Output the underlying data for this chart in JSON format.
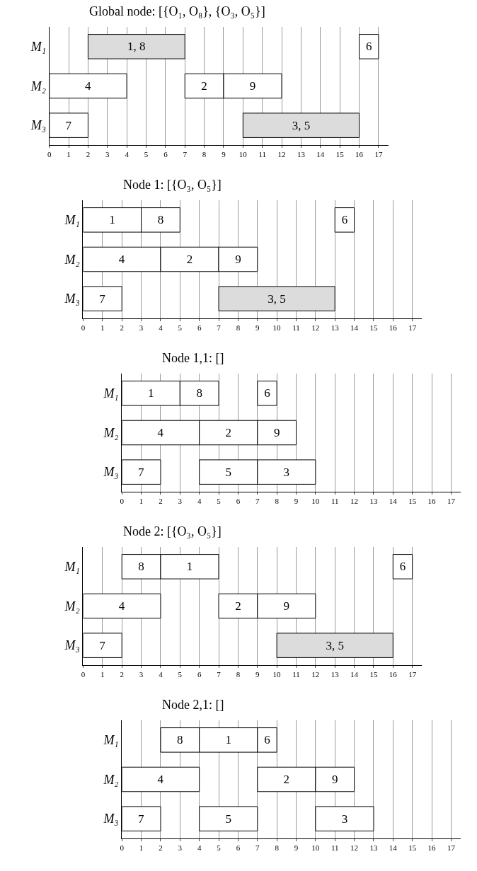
{
  "chart_data": [
    {
      "type": "bar",
      "orientation": "horizontal",
      "title": "Global node: [{O₁, O₈}, {O₃, O₅}]",
      "categories": [
        "M₁",
        "M₂",
        "M₃"
      ],
      "xlim": [
        0,
        17.5
      ],
      "xticks": [
        0,
        1,
        2,
        3,
        4,
        5,
        6,
        7,
        8,
        9,
        10,
        11,
        12,
        13,
        14,
        15,
        16,
        17
      ],
      "grid": "x",
      "legend": false,
      "series": [
        {
          "name": "1, 8",
          "color": "#dcdcdc",
          "values": [
            5,
            null,
            null
          ],
          "base": [
            2,
            null,
            null
          ]
        },
        {
          "name": "6",
          "color": "#ffffff",
          "values": [
            1,
            null,
            null
          ],
          "base": [
            16,
            null,
            null
          ]
        },
        {
          "name": "4",
          "color": "#ffffff",
          "values": [
            null,
            4,
            null
          ],
          "base": [
            null,
            0,
            null
          ]
        },
        {
          "name": "2",
          "color": "#ffffff",
          "values": [
            null,
            2,
            null
          ],
          "base": [
            null,
            7,
            null
          ]
        },
        {
          "name": "9",
          "color": "#ffffff",
          "values": [
            null,
            3,
            null
          ],
          "base": [
            null,
            9,
            null
          ]
        },
        {
          "name": "7",
          "color": "#ffffff",
          "values": [
            null,
            null,
            2
          ],
          "base": [
            null,
            null,
            0
          ]
        },
        {
          "name": "3, 5",
          "color": "#dcdcdc",
          "values": [
            null,
            null,
            6
          ],
          "base": [
            null,
            null,
            10
          ]
        }
      ]
    },
    {
      "type": "bar",
      "orientation": "horizontal",
      "title": "Node 1: [{O₃, O₅}]",
      "categories": [
        "M₁",
        "M₂",
        "M₃"
      ],
      "xlim": [
        0,
        17.5
      ],
      "xticks": [
        0,
        1,
        2,
        3,
        4,
        5,
        6,
        7,
        8,
        9,
        10,
        11,
        12,
        13,
        14,
        15,
        16,
        17
      ],
      "grid": "x",
      "legend": false,
      "series": [
        {
          "name": "1",
          "color": "#ffffff",
          "values": [
            3,
            null,
            null
          ],
          "base": [
            0,
            null,
            null
          ]
        },
        {
          "name": "8",
          "color": "#ffffff",
          "values": [
            2,
            null,
            null
          ],
          "base": [
            3,
            null,
            null
          ]
        },
        {
          "name": "6",
          "color": "#ffffff",
          "values": [
            1,
            null,
            null
          ],
          "base": [
            13,
            null,
            null
          ]
        },
        {
          "name": "4",
          "color": "#ffffff",
          "values": [
            null,
            4,
            null
          ],
          "base": [
            null,
            0,
            null
          ]
        },
        {
          "name": "2",
          "color": "#ffffff",
          "values": [
            null,
            3,
            null
          ],
          "base": [
            null,
            4,
            null
          ]
        },
        {
          "name": "9",
          "color": "#ffffff",
          "values": [
            null,
            2,
            null
          ],
          "base": [
            null,
            7,
            null
          ]
        },
        {
          "name": "7",
          "color": "#ffffff",
          "values": [
            null,
            null,
            2
          ],
          "base": [
            null,
            null,
            0
          ]
        },
        {
          "name": "3, 5",
          "color": "#dcdcdc",
          "values": [
            null,
            null,
            6
          ],
          "base": [
            null,
            null,
            7
          ]
        }
      ]
    },
    {
      "type": "bar",
      "orientation": "horizontal",
      "title": "Node 1,1: []",
      "categories": [
        "M₁",
        "M₂",
        "M₃"
      ],
      "xlim": [
        0,
        17.5
      ],
      "xticks": [
        0,
        1,
        2,
        3,
        4,
        5,
        6,
        7,
        8,
        9,
        10,
        11,
        12,
        13,
        14,
        15,
        16,
        17
      ],
      "grid": "x",
      "legend": false,
      "series": [
        {
          "name": "1",
          "color": "#ffffff",
          "values": [
            3,
            null,
            null
          ],
          "base": [
            0,
            null,
            null
          ]
        },
        {
          "name": "8",
          "color": "#ffffff",
          "values": [
            2,
            null,
            null
          ],
          "base": [
            3,
            null,
            null
          ]
        },
        {
          "name": "6",
          "color": "#ffffff",
          "values": [
            1,
            null,
            null
          ],
          "base": [
            7,
            null,
            null
          ]
        },
        {
          "name": "4",
          "color": "#ffffff",
          "values": [
            null,
            4,
            null
          ],
          "base": [
            null,
            0,
            null
          ]
        },
        {
          "name": "2",
          "color": "#ffffff",
          "values": [
            null,
            3,
            null
          ],
          "base": [
            null,
            4,
            null
          ]
        },
        {
          "name": "9",
          "color": "#ffffff",
          "values": [
            null,
            2,
            null
          ],
          "base": [
            null,
            7,
            null
          ]
        },
        {
          "name": "7",
          "color": "#ffffff",
          "values": [
            null,
            null,
            2
          ],
          "base": [
            null,
            null,
            0
          ]
        },
        {
          "name": "5",
          "color": "#ffffff",
          "values": [
            null,
            null,
            3
          ],
          "base": [
            null,
            null,
            4
          ]
        },
        {
          "name": "3",
          "color": "#ffffff",
          "values": [
            null,
            null,
            3
          ],
          "base": [
            null,
            null,
            7
          ]
        }
      ]
    },
    {
      "type": "bar",
      "orientation": "horizontal",
      "title": "Node 2: [{O₃, O₅}]",
      "categories": [
        "M₁",
        "M₂",
        "M₃"
      ],
      "xlim": [
        0,
        17.5
      ],
      "xticks": [
        0,
        1,
        2,
        3,
        4,
        5,
        6,
        7,
        8,
        9,
        10,
        11,
        12,
        13,
        14,
        15,
        16,
        17
      ],
      "grid": "x",
      "legend": false,
      "series": [
        {
          "name": "8",
          "color": "#ffffff",
          "values": [
            2,
            null,
            null
          ],
          "base": [
            2,
            null,
            null
          ]
        },
        {
          "name": "1",
          "color": "#ffffff",
          "values": [
            3,
            null,
            null
          ],
          "base": [
            4,
            null,
            null
          ]
        },
        {
          "name": "6",
          "color": "#ffffff",
          "values": [
            1,
            null,
            null
          ],
          "base": [
            16,
            null,
            null
          ]
        },
        {
          "name": "4",
          "color": "#ffffff",
          "values": [
            null,
            4,
            null
          ],
          "base": [
            null,
            0,
            null
          ]
        },
        {
          "name": "2",
          "color": "#ffffff",
          "values": [
            null,
            2,
            null
          ],
          "base": [
            null,
            7,
            null
          ]
        },
        {
          "name": "9",
          "color": "#ffffff",
          "values": [
            null,
            3,
            null
          ],
          "base": [
            null,
            9,
            null
          ]
        },
        {
          "name": "7",
          "color": "#ffffff",
          "values": [
            null,
            null,
            2
          ],
          "base": [
            null,
            null,
            0
          ]
        },
        {
          "name": "3, 5",
          "color": "#dcdcdc",
          "values": [
            null,
            null,
            6
          ],
          "base": [
            null,
            null,
            10
          ]
        }
      ]
    },
    {
      "type": "bar",
      "orientation": "horizontal",
      "title": "Node 2,1: []",
      "categories": [
        "M₁",
        "M₂",
        "M₃"
      ],
      "xlim": [
        0,
        17.5
      ],
      "xticks": [
        0,
        1,
        2,
        3,
        4,
        5,
        6,
        7,
        8,
        9,
        10,
        11,
        12,
        13,
        14,
        15,
        16,
        17
      ],
      "grid": "x",
      "legend": false,
      "series": [
        {
          "name": "8",
          "color": "#ffffff",
          "values": [
            2,
            null,
            null
          ],
          "base": [
            2,
            null,
            null
          ]
        },
        {
          "name": "1",
          "color": "#ffffff",
          "values": [
            3,
            null,
            null
          ],
          "base": [
            4,
            null,
            null
          ]
        },
        {
          "name": "6",
          "color": "#ffffff",
          "values": [
            1,
            null,
            null
          ],
          "base": [
            7,
            null,
            null
          ]
        },
        {
          "name": "4",
          "color": "#ffffff",
          "values": [
            null,
            4,
            null
          ],
          "base": [
            null,
            0,
            null
          ]
        },
        {
          "name": "2",
          "color": "#ffffff",
          "values": [
            null,
            3,
            null
          ],
          "base": [
            null,
            7,
            null
          ]
        },
        {
          "name": "9",
          "color": "#ffffff",
          "values": [
            null,
            2,
            null
          ],
          "base": [
            null,
            10,
            null
          ]
        },
        {
          "name": "7",
          "color": "#ffffff",
          "values": [
            null,
            null,
            2
          ],
          "base": [
            null,
            null,
            0
          ]
        },
        {
          "name": "5",
          "color": "#ffffff",
          "values": [
            null,
            null,
            3
          ],
          "base": [
            null,
            null,
            4
          ]
        },
        {
          "name": "3",
          "color": "#ffffff",
          "values": [
            null,
            null,
            3
          ],
          "base": [
            null,
            null,
            10
          ]
        }
      ]
    }
  ]
}
